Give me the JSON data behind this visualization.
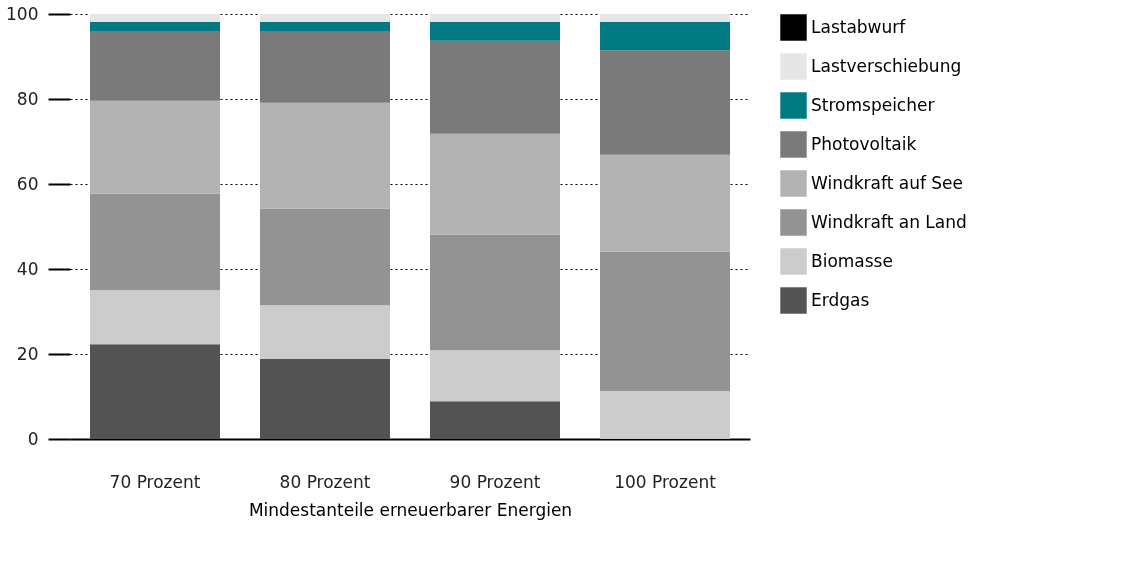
{
  "chart_data": {
    "type": "bar",
    "stacked": true,
    "xlabel": "Mindestanteile erneuerbarer Energien",
    "categories": [
      "70 Prozent",
      "80 Prozent",
      "90 Prozent",
      "100 Prozent"
    ],
    "series": [
      {
        "name": "Erdgas",
        "color": "#535353",
        "values": [
          22.3,
          18.8,
          8.9,
          0
        ]
      },
      {
        "name": "Biomasse",
        "color": "#cccccc",
        "values": [
          12.7,
          12.7,
          12.0,
          11.3
        ]
      },
      {
        "name": "Windkraft an Land",
        "color": "#939393",
        "values": [
          22.7,
          22.7,
          27.2,
          32.8
        ]
      },
      {
        "name": "Windkraft auf See",
        "color": "#b3b3b3",
        "values": [
          21.9,
          24.9,
          23.7,
          22.8
        ]
      },
      {
        "name": "Photovoltaik",
        "color": "#7a7a7a",
        "values": [
          16.4,
          16.7,
          21.9,
          24.6
        ]
      },
      {
        "name": "Stromspeicher",
        "color": "#007a80",
        "values": [
          2.1,
          2.3,
          4.4,
          6.6
        ]
      },
      {
        "name": "Lastverschiebung",
        "color": "#e6e6e6",
        "values": [
          1.9,
          1.9,
          1.9,
          1.9
        ]
      },
      {
        "name": "Lastabwurf",
        "color": "#000000",
        "values": [
          0,
          0,
          0,
          0
        ]
      }
    ],
    "ylim": [
      0,
      100
    ],
    "yticks": [
      0,
      20,
      40,
      60,
      80,
      100
    ],
    "grid": "y",
    "legend": "right"
  }
}
